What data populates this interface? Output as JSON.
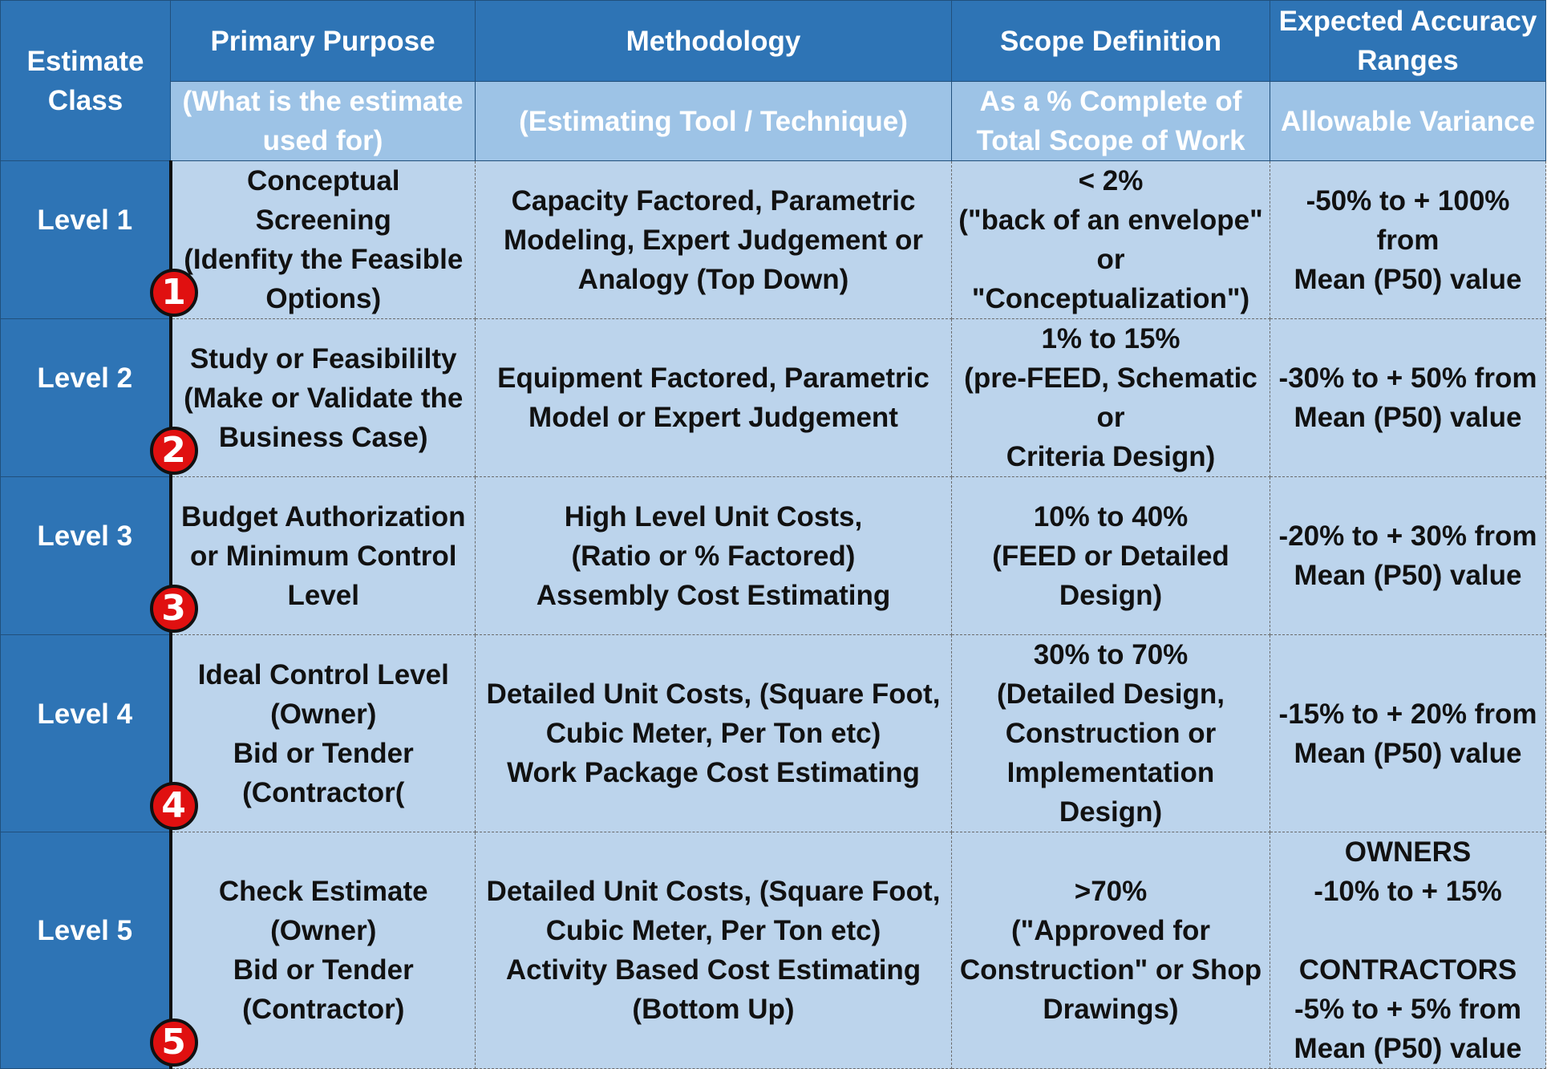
{
  "header": {
    "estimate_class": "Estimate\nClass",
    "columns": [
      {
        "title": "Primary Purpose",
        "subtitle": "(What is the estimate\nused for)"
      },
      {
        "title": "Methodology",
        "subtitle": "(Estimating Tool / Technique)"
      },
      {
        "title": "Scope Definition",
        "subtitle": "As a % Complete of\nTotal Scope of Work"
      },
      {
        "title": "Expected Accuracy\nRanges",
        "subtitle": "Allowable Variance"
      }
    ]
  },
  "rows": [
    {
      "level": "Level 1",
      "badge": "1",
      "purpose": "Conceptual Screening\n(Idenfity the Feasible\nOptions)",
      "methodology": "Capacity Factored, Parametric\nModeling, Expert Judgement or\nAnalogy (Top Down)",
      "scope": "< 2%\n(\"back of an envelope\"\nor \"Conceptualization\")",
      "accuracy": "-50% to + 100% from\nMean (P50) value"
    },
    {
      "level": "Level 2",
      "badge": "2",
      "purpose": "Study or Feasibililty\n(Make or Validate the\nBusiness Case)",
      "methodology": "Equipment Factored, Parametric\nModel or Expert Judgement",
      "scope": "1% to 15%\n(pre-FEED, Schematic or\nCriteria Design)",
      "accuracy": "-30% to + 50% from\nMean (P50) value"
    },
    {
      "level": "Level 3",
      "badge": "3",
      "purpose": "Budget Authorization\nor Minimum Control\nLevel",
      "methodology": "High Level Unit Costs,\n(Ratio or %  Factored)\nAssembly Cost Estimating",
      "scope": "10% to 40%\n(FEED or Detailed\nDesign)",
      "accuracy": "-20% to + 30% from\nMean (P50) value"
    },
    {
      "level": "Level 4",
      "badge": "4",
      "purpose": "Ideal Control Level\n(Owner)\nBid or Tender\n(Contractor(",
      "methodology": "Detailed Unit Costs, (Square Foot,\nCubic Meter, Per Ton etc)\nWork Package Cost Estimating",
      "scope": "30% to 70%\n(Detailed Design,\nConstruction or\nImplementation Design)",
      "accuracy": "-15% to + 20% from\nMean (P50) value"
    },
    {
      "level": "Level 5",
      "badge": "5",
      "purpose": "Check Estimate\n(Owner)\nBid or Tender\n(Contractor)",
      "methodology": "Detailed Unit Costs, (Square Foot,\nCubic Meter, Per Ton etc)\nActivity Based Cost Estimating\n(Bottom Up)",
      "scope": ">70%\n(\"Approved for\nConstruction\" or Shop\nDrawings)",
      "accuracy": "OWNERS\n-10% to + 15%\n\nCONTRACTORS\n-5% to + 5%  from\nMean (P50) value"
    }
  ],
  "colors": {
    "header_dark": "#2e74b5",
    "header_light": "#9dc3e6",
    "cell_background": "#bcd4ec",
    "badge_red": "#e01010"
  }
}
